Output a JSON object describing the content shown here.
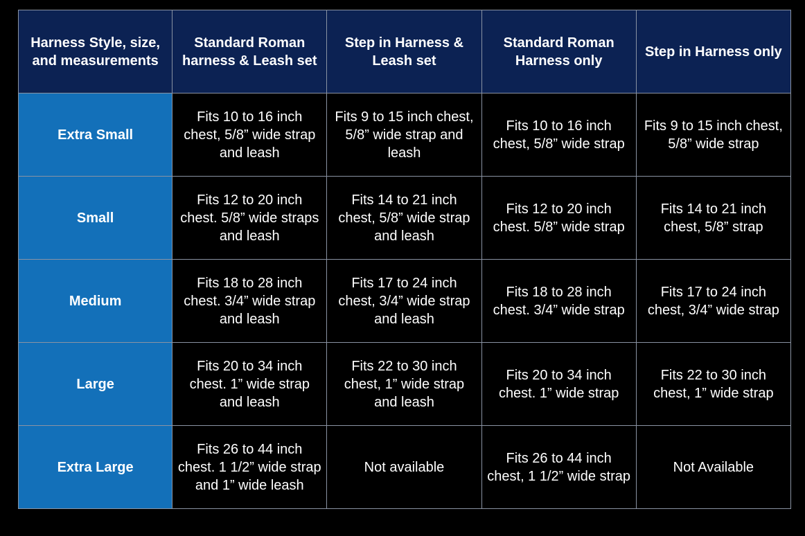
{
  "colors": {
    "header_bg": "#0c2253",
    "size_cell_bg": "#1370b9",
    "body_bg": "#000000",
    "text": "#ffffff"
  },
  "headers": [
    "Harness Style, size, and measurements",
    "Standard Roman harness & Leash set",
    "Step in Harness & Leash set",
    "Standard Roman Harness only",
    "Step in Harness only"
  ],
  "rows": [
    {
      "size": "Extra Small",
      "cells": [
        "Fits 10 to 16 inch chest, 5/8” wide strap and leash",
        "Fits 9 to 15 inch chest, 5/8” wide strap and leash",
        "Fits 10 to 16 inch chest, 5/8” wide strap",
        "Fits 9 to 15 inch chest, 5/8” wide strap"
      ]
    },
    {
      "size": "Small",
      "cells": [
        "Fits 12 to 20 inch chest. 5/8” wide straps and leash",
        "Fits 14 to 21 inch chest, 5/8” wide strap and leash",
        "Fits 12 to 20 inch chest. 5/8” wide strap",
        "Fits 14 to 21 inch chest, 5/8” strap"
      ]
    },
    {
      "size": "Medium",
      "cells": [
        "Fits 18 to 28 inch chest. 3/4” wide strap and leash",
        "Fits 17 to 24 inch chest, 3/4” wide strap and leash",
        "Fits 18 to 28 inch chest. 3/4” wide strap",
        "Fits 17 to 24 inch chest, 3/4” wide strap"
      ]
    },
    {
      "size": "Large",
      "cells": [
        "Fits 20 to 34 inch chest. 1” wide strap and leash",
        "Fits 22 to 30 inch chest, 1” wide strap and leash",
        "Fits 20 to 34 inch chest. 1” wide strap",
        "Fits 22 to 30 inch chest, 1” wide strap"
      ]
    },
    {
      "size": "Extra Large",
      "cells": [
        "Fits 26 to 44 inch chest. 1 1/2” wide strap and 1” wide leash",
        "Not available",
        "Fits 26 to 44 inch chest, 1 1/2” wide strap",
        "Not Available"
      ]
    }
  ]
}
